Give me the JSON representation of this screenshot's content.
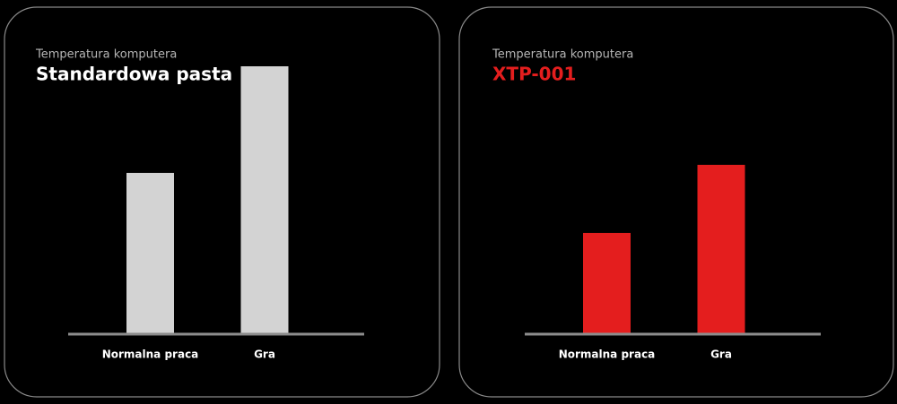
{
  "chart_data": [
    {
      "type": "bar",
      "subtitle": "Temperatura komputera",
      "title": "Standardowa pasta",
      "categories": [
        "Normalna praca",
        "Gra"
      ],
      "values": [
        180,
        299
      ],
      "color": "#d3d3d3",
      "title_color": "#ffffff",
      "ylim": [
        0,
        320
      ]
    },
    {
      "type": "bar",
      "subtitle": "Temperatura komputera",
      "title": "XTP-001",
      "categories": [
        "Normalna praca",
        "Gra"
      ],
      "values": [
        113,
        189
      ],
      "color": "#e41e1e",
      "title_color": "#e41e1e",
      "ylim": [
        0,
        320
      ]
    }
  ]
}
